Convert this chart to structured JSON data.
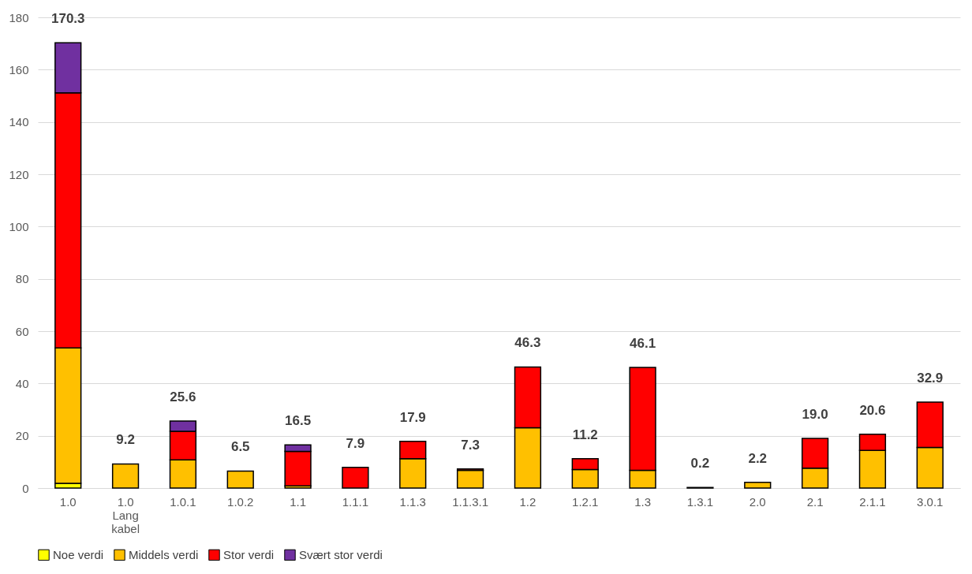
{
  "chart_data": {
    "type": "bar",
    "stacked": true,
    "categories": [
      "1.0",
      "1.0 Lang kabel",
      "1.0.1",
      "1.0.2",
      "1.1",
      "1.1.1",
      "1.1.3",
      "1.1.3.1",
      "1.2",
      "1.2.1",
      "1.3",
      "1.3.1",
      "2.0",
      "2.1",
      "2.1.1",
      "3.0.1"
    ],
    "series": [
      {
        "name": "Noe verdi",
        "color": "#ffff00",
        "values": [
          1.8,
          null,
          null,
          null,
          null,
          null,
          null,
          null,
          null,
          null,
          null,
          null,
          null,
          null,
          null,
          null
        ]
      },
      {
        "name": "Middels verdi",
        "color": "#ffc000",
        "values": [
          51.8,
          9.2,
          10.8,
          6.5,
          0.8,
          null,
          11.2,
          6.8,
          23.1,
          7.1,
          6.8,
          0.2,
          2.2,
          7.6,
          14.4,
          15.5
        ]
      },
      {
        "name": "Stor verdi",
        "color": "#ff0000",
        "values": [
          97.5,
          null,
          10.9,
          null,
          13.2,
          7.9,
          6.7,
          0.5,
          23.2,
          4.1,
          39.3,
          null,
          null,
          11.4,
          6.2,
          17.4
        ]
      },
      {
        "name": "Svært stor verdi",
        "color": "#7030a0",
        "values": [
          19.2,
          null,
          3.9,
          null,
          2.5,
          null,
          null,
          null,
          null,
          null,
          null,
          null,
          null,
          null,
          null,
          null
        ]
      }
    ],
    "totals": [
      "170.3",
      "9.2",
      "25.6",
      "6.5",
      "16.5",
      "7.9",
      "17.9",
      "7.3",
      "46.3",
      "11.2",
      "46.1",
      "0.2",
      "2.2",
      "19.0",
      "20.6",
      "32.9"
    ],
    "ylim": [
      0,
      180
    ],
    "yticks": [
      0,
      20,
      40,
      60,
      80,
      100,
      120,
      140,
      160,
      180
    ],
    "grid": "y",
    "legend": "bottom"
  }
}
